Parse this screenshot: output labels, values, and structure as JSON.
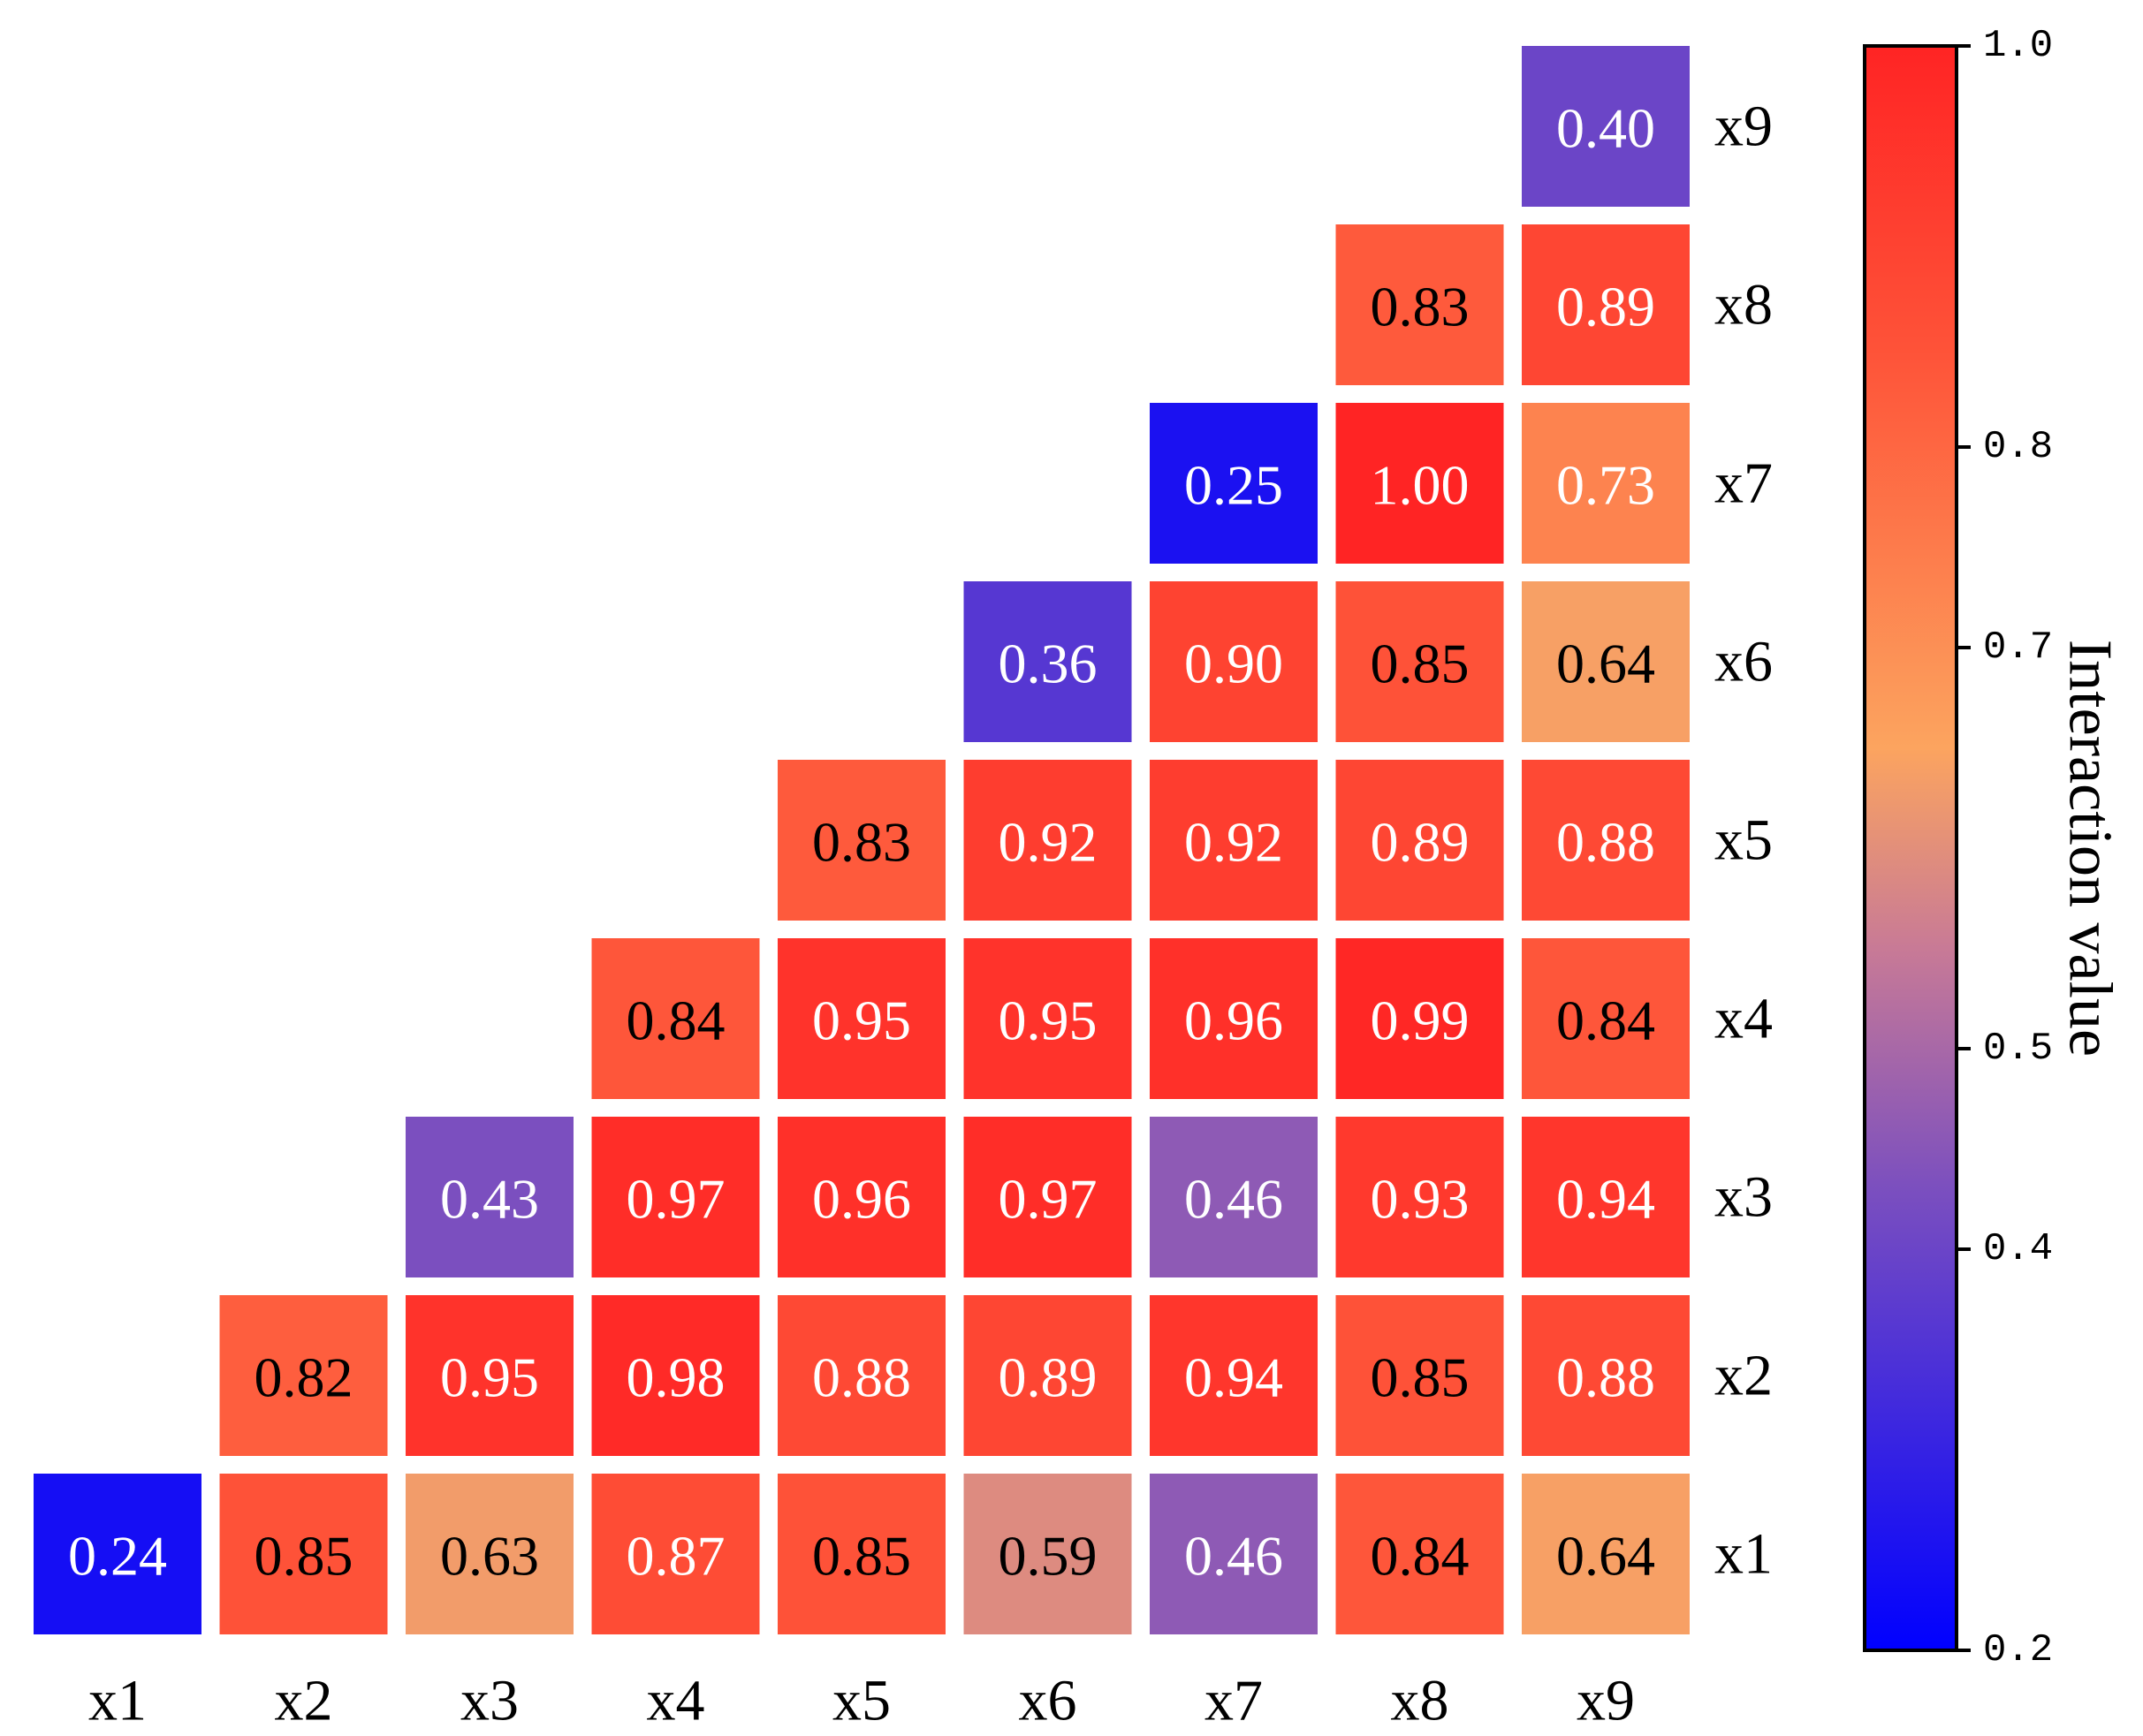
{
  "chart_data": {
    "type": "heatmap",
    "shape": "lower-triangular",
    "x_labels": [
      "x1",
      "x2",
      "x3",
      "x4",
      "x5",
      "x6",
      "x7",
      "x8",
      "x9"
    ],
    "y_labels": [
      "x1",
      "x2",
      "x3",
      "x4",
      "x5",
      "x6",
      "x7",
      "x8",
      "x9"
    ],
    "values": [
      [
        0.24,
        0.85,
        0.63,
        0.87,
        0.85,
        0.59,
        0.46,
        0.84,
        0.64
      ],
      [
        null,
        0.82,
        0.95,
        0.98,
        0.88,
        0.89,
        0.94,
        0.85,
        0.88
      ],
      [
        null,
        null,
        0.43,
        0.97,
        0.96,
        0.97,
        0.46,
        0.93,
        0.94
      ],
      [
        null,
        null,
        null,
        0.84,
        0.95,
        0.95,
        0.96,
        0.99,
        0.84
      ],
      [
        null,
        null,
        null,
        null,
        0.83,
        0.92,
        0.92,
        0.89,
        0.88
      ],
      [
        null,
        null,
        null,
        null,
        null,
        0.36,
        0.9,
        0.85,
        0.64
      ],
      [
        null,
        null,
        null,
        null,
        null,
        null,
        0.25,
        1.0,
        0.73
      ],
      [
        null,
        null,
        null,
        null,
        null,
        null,
        null,
        0.83,
        0.89
      ],
      [
        null,
        null,
        null,
        null,
        null,
        null,
        null,
        null,
        0.4
      ]
    ],
    "value_format": "0.00",
    "colorbar": {
      "title": "Interaction value",
      "range": [
        0.2,
        1.0
      ],
      "ticks": [
        "0.2",
        "0.4",
        "0.5",
        "0.7",
        "0.8",
        "1.0"
      ],
      "tick_values": [
        0.2,
        0.4,
        0.5,
        0.7,
        0.8,
        1.0
      ],
      "colors": [
        "#0000ff",
        "#7b4fbf",
        "#c87a96",
        "#fca45f",
        "#fe5238",
        "#ff2424"
      ],
      "color_stops": [
        0.2,
        0.43,
        0.55,
        0.65,
        0.85,
        1.0
      ]
    },
    "grid": false,
    "legend": "colorbar right"
  }
}
